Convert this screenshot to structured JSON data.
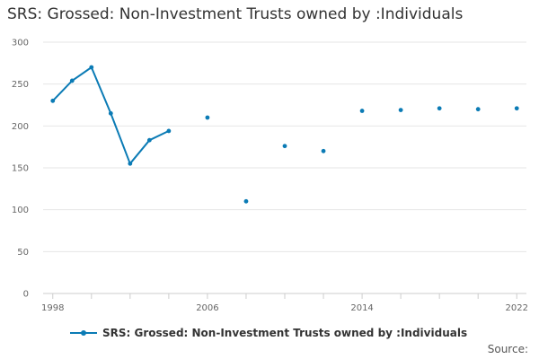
{
  "chart_data": {
    "type": "line",
    "title": "SRS: Grossed: Non-Investment Trusts owned by :Individuals",
    "series": [
      {
        "name": "SRS: Grossed: Non-Investment Trusts owned by :Individuals",
        "color": "#0b7bb5",
        "points": [
          {
            "x": 1998,
            "y": 230
          },
          {
            "x": 1999,
            "y": 254
          },
          {
            "x": 2000,
            "y": 270
          },
          {
            "x": 2001,
            "y": 215
          },
          {
            "x": 2002,
            "y": 155
          },
          {
            "x": 2003,
            "y": 183
          },
          {
            "x": 2004,
            "y": 194
          },
          {
            "x": 2006,
            "y": 210
          },
          {
            "x": 2008,
            "y": 110
          },
          {
            "x": 2010,
            "y": 176
          },
          {
            "x": 2012,
            "y": 170
          },
          {
            "x": 2014,
            "y": 218
          },
          {
            "x": 2016,
            "y": 219
          },
          {
            "x": 2018,
            "y": 221
          },
          {
            "x": 2020,
            "y": 220
          },
          {
            "x": 2022,
            "y": 221
          }
        ]
      }
    ],
    "xlim": [
      1997.5,
      2022.5
    ],
    "ylim": [
      0,
      300
    ],
    "x_tick_labels": [
      "1998",
      "2006",
      "2014",
      "2022"
    ],
    "y_tick_labels": [
      "0",
      "50",
      "100",
      "150",
      "200",
      "250",
      "300"
    ],
    "grid": true,
    "legend_position": "bottom",
    "source_label": "Source:"
  }
}
